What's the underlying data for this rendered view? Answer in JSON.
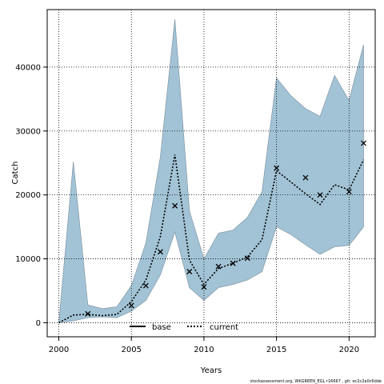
{
  "chart_data": {
    "type": "line",
    "xlabel": "Years",
    "ylabel": "Catch",
    "xlim": [
      1999.2,
      2021.8
    ],
    "ylim": [
      -2200,
      49000
    ],
    "x_ticks": [
      2000,
      2005,
      2010,
      2015,
      2020
    ],
    "y_ticks": [
      0,
      10000,
      20000,
      30000,
      40000
    ],
    "grid": true,
    "legend": {
      "placement": "bottom-center",
      "entries": [
        {
          "name": "base",
          "style": "solid"
        },
        {
          "name": "current",
          "style": "dotted"
        }
      ]
    },
    "band": {
      "x": [
        2000,
        2001,
        2002,
        2003,
        2004,
        2005,
        2006,
        2007,
        2008,
        2009,
        2010,
        2011,
        2012,
        2013,
        2014,
        2015,
        2016,
        2017,
        2018,
        2019,
        2020,
        2021
      ],
      "upper": [
        0,
        25200,
        2800,
        2200,
        2500,
        5800,
        12500,
        26000,
        47500,
        17500,
        10000,
        14000,
        14500,
        16500,
        20500,
        38300,
        35500,
        33500,
        32300,
        38700,
        34800,
        43500
      ],
      "lower": [
        0,
        300,
        800,
        900,
        800,
        1800,
        3500,
        7500,
        14200,
        5500,
        3500,
        5500,
        6000,
        6700,
        8000,
        15000,
        13800,
        12200,
        10700,
        11900,
        12100,
        15000
      ],
      "color": "#a2c3d6"
    },
    "series": [
      {
        "name": "current",
        "style": "dotted",
        "x": [
          2000,
          2001,
          2002,
          2003,
          2004,
          2005,
          2006,
          2007,
          2008,
          2009,
          2010,
          2011,
          2012,
          2013,
          2014,
          2015,
          2016,
          2017,
          2018,
          2019,
          2020,
          2021
        ],
        "y": [
          0,
          1200,
          1300,
          1100,
          1300,
          3300,
          6700,
          13500,
          26300,
          9800,
          6000,
          8500,
          9300,
          10300,
          13000,
          23800,
          22000,
          20200,
          18500,
          21600,
          20800,
          25500
        ]
      }
    ],
    "observed_points": {
      "marker": "x",
      "x": [
        2002,
        2005,
        2006,
        2007,
        2008,
        2009,
        2010,
        2011,
        2012,
        2013,
        2015,
        2017,
        2018,
        2020,
        2021
      ],
      "y": [
        1400,
        2700,
        5800,
        11100,
        18300,
        8000,
        5600,
        8800,
        9300,
        10100,
        24200,
        22700,
        20000,
        20500,
        28100
      ]
    },
    "footer": "stockassessment.org, WKGREEN_EGL r16667 , git: ec2c2a0c6dde"
  }
}
